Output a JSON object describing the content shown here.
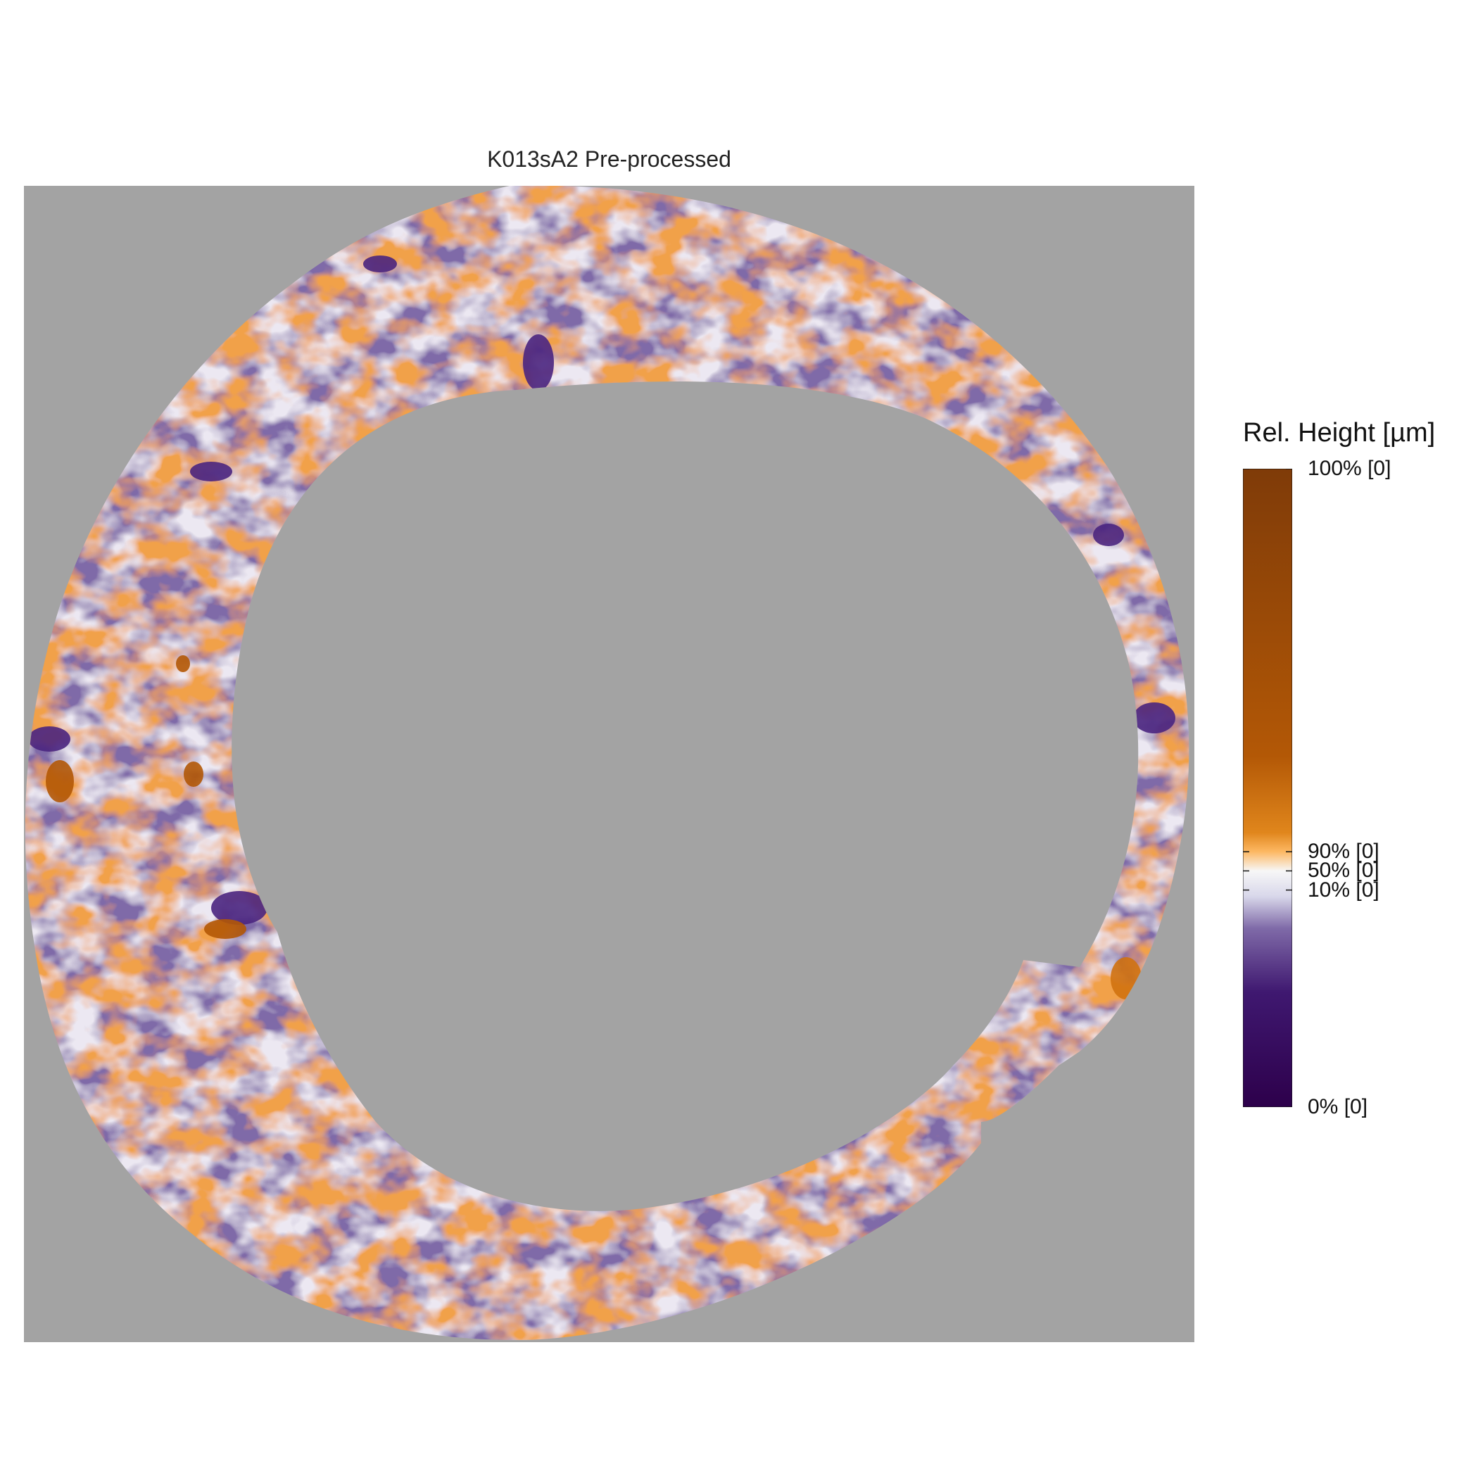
{
  "chart_data": {
    "type": "heatmap",
    "title": "K013sA2 Pre-processed",
    "xlabel": "",
    "ylabel": "",
    "grid": false,
    "legend_placement": "right",
    "missing_value_color": "#a3a3a3",
    "legend": {
      "title": "Rel. Height [µm]",
      "ticks": [
        {
          "fraction": 1.0,
          "label": "100% [0]"
        },
        {
          "fraction": 0.4,
          "label": "90% [0]"
        },
        {
          "fraction": 0.37,
          "label": "50% [0]"
        },
        {
          "fraction": 0.34,
          "label": "10% [0]"
        },
        {
          "fraction": 0.0,
          "label": "0% [0]"
        }
      ],
      "colors": [
        {
          "fraction": 0.0,
          "color": "#2d004b"
        },
        {
          "fraction": 0.18,
          "color": "#3f1870"
        },
        {
          "fraction": 0.28,
          "color": "#7f6aa8"
        },
        {
          "fraction": 0.33,
          "color": "#d8d7ea"
        },
        {
          "fraction": 0.37,
          "color": "#f7f7f7"
        },
        {
          "fraction": 0.4,
          "color": "#fdb863"
        },
        {
          "fraction": 0.43,
          "color": "#e0861c"
        },
        {
          "fraction": 0.55,
          "color": "#b35806"
        },
        {
          "fraction": 1.0,
          "color": "#7f3b08"
        }
      ]
    }
  }
}
